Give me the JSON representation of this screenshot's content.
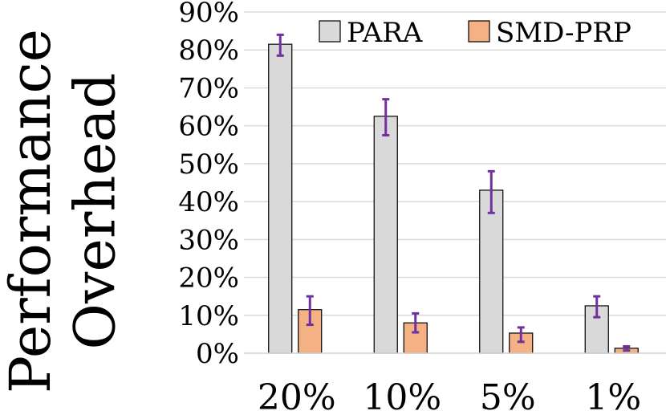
{
  "chart_data": {
    "type": "bar",
    "categories": [
      "20%",
      "10%",
      "5%",
      "1%"
    ],
    "series": [
      {
        "name": "PARA",
        "color": "#d9d9d9",
        "values": [
          81.5,
          62.5,
          43.0,
          12.5
        ],
        "error_low": [
          78.5,
          57.5,
          37.0,
          9.5
        ],
        "error_high": [
          84.0,
          67.0,
          48.0,
          15.0
        ]
      },
      {
        "name": "SMD-PRP",
        "color": "#f4b183",
        "values": [
          11.5,
          8.0,
          5.3,
          1.3
        ],
        "error_low": [
          7.5,
          5.5,
          3.0,
          0.7
        ],
        "error_high": [
          15.0,
          10.5,
          6.8,
          1.8
        ]
      }
    ],
    "ylabel_lines": [
      "Performance",
      "Overhead"
    ],
    "xlabel": "",
    "ylim": [
      0,
      90
    ],
    "yticks": [
      0,
      10,
      20,
      30,
      40,
      50,
      60,
      70,
      80,
      90
    ],
    "ytick_suffix": "%",
    "grid": true,
    "legend_position": "top-right",
    "error_bar_color": "#7030a0"
  }
}
